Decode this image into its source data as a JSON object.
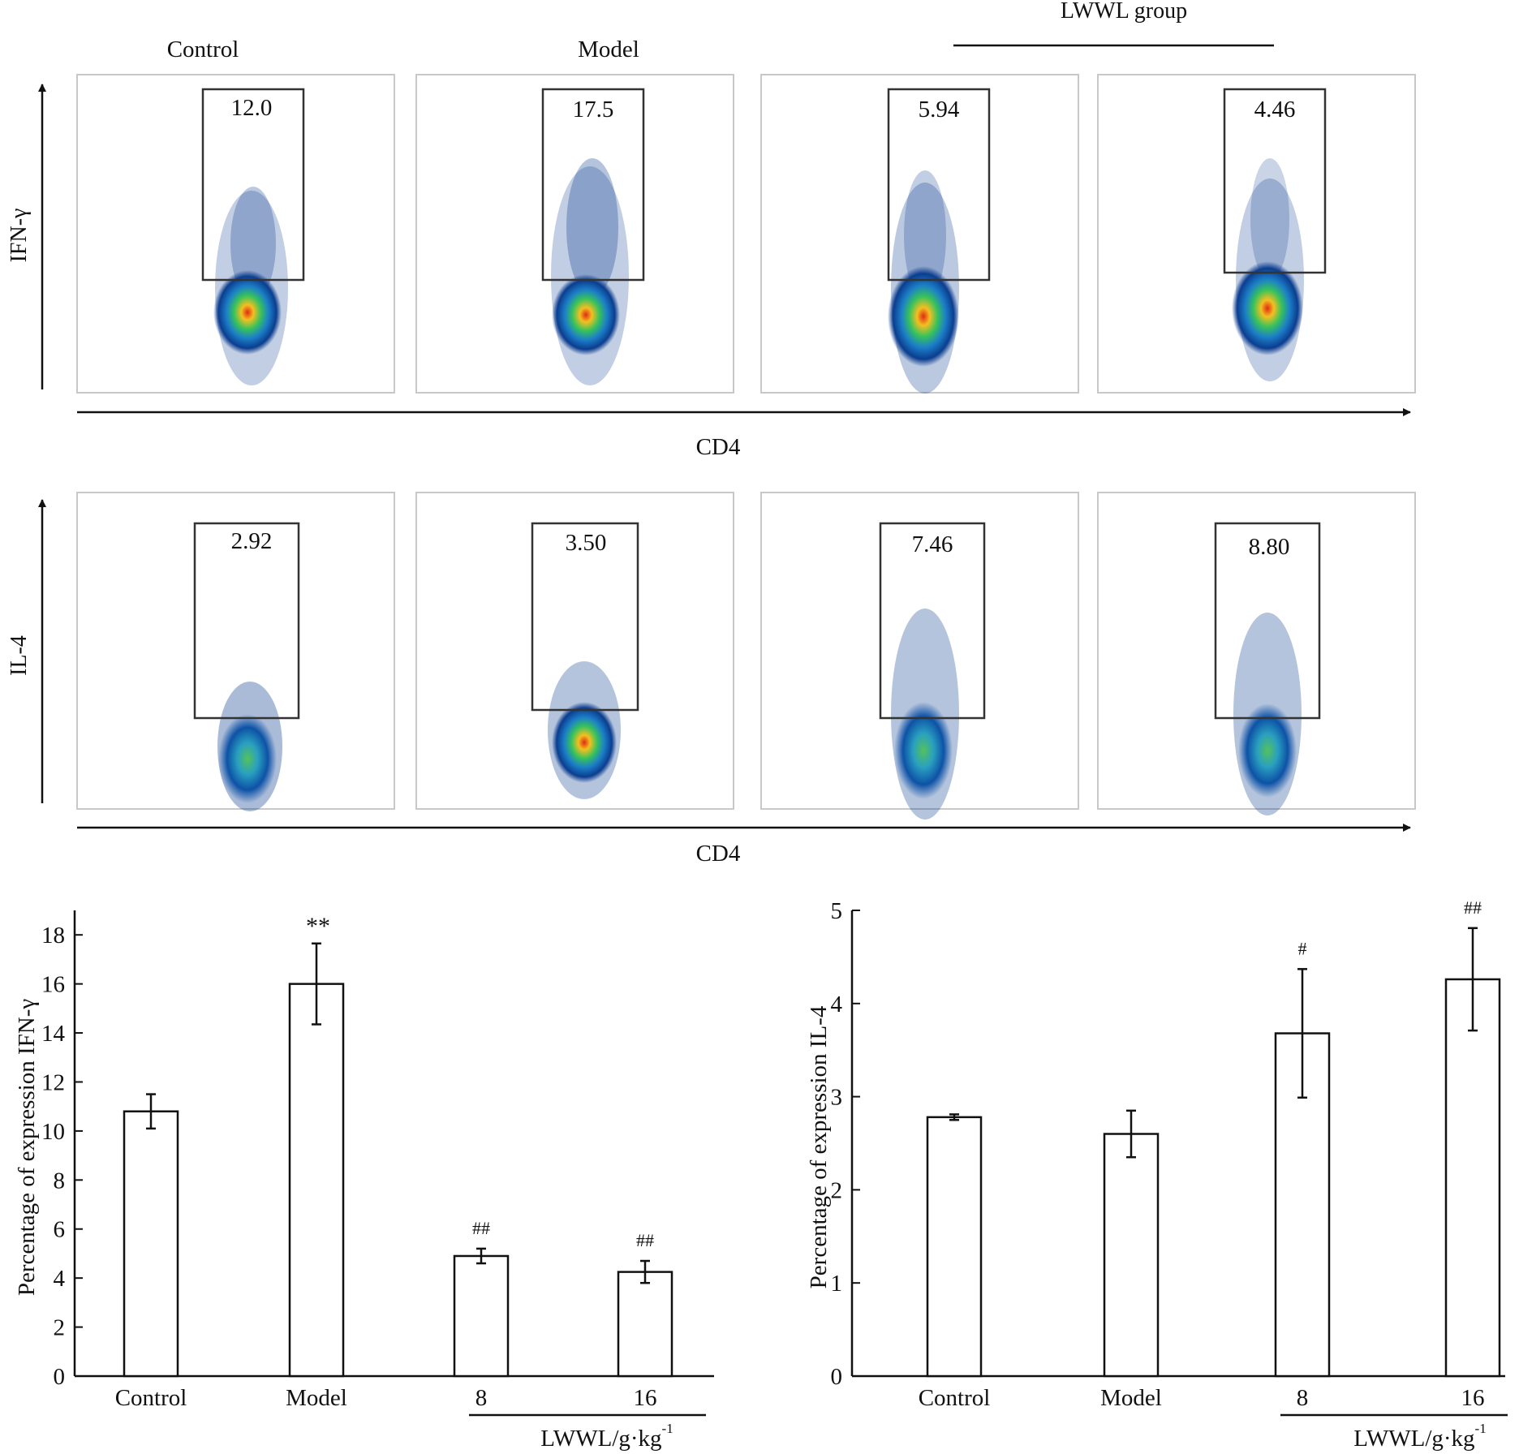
{
  "figure": {
    "group_bracket_label": "LWWL group",
    "flow_columns": [
      "Control",
      "Model",
      "",
      ""
    ],
    "flow_rows": [
      {
        "ylabel": "IFN-γ",
        "xlabel": "CD4",
        "gate_values": [
          "12.0",
          "17.5",
          "5.94",
          "4.46"
        ],
        "gate_top_frac": [
          0.19,
          0.22,
          0.21,
          0.21
        ]
      },
      {
        "ylabel": "IL-4",
        "xlabel": "CD4",
        "gate_values": [
          "2.92",
          "3.50",
          "7.46",
          "8.80"
        ],
        "gate_top_frac": [
          0.32,
          0.28,
          0.38,
          0.4
        ]
      }
    ],
    "colors": {
      "axis": "#111111",
      "panel_border": "#c8c8c8",
      "gate": "#333333",
      "bar_fill": "#ffffff"
    }
  },
  "chart_data": [
    {
      "type": "bar",
      "categories": [
        "Control",
        "Model",
        "8",
        "16"
      ],
      "values": [
        10.8,
        16.0,
        4.9,
        4.25
      ],
      "errors": [
        0.7,
        1.65,
        0.3,
        0.45
      ],
      "annotations": [
        "",
        "**",
        "##",
        "##"
      ],
      "ylabel": "Percentage of expression IFN-γ",
      "xlabel": "LWWL/g·kg",
      "xlabel_sup": "-1",
      "bracket_categories": [
        "8",
        "16"
      ],
      "ylim": [
        0,
        19
      ],
      "yticks": [
        0,
        2,
        4,
        6,
        8,
        10,
        12,
        14,
        16,
        18
      ]
    },
    {
      "type": "bar",
      "categories": [
        "Control",
        "Model",
        "8",
        "16"
      ],
      "values": [
        2.78,
        2.6,
        3.68,
        4.26
      ],
      "errors": [
        0.03,
        0.25,
        0.69,
        0.55
      ],
      "annotations": [
        "",
        "",
        "#",
        "##"
      ],
      "ylabel": "Percentage of expression IL-4",
      "xlabel": "LWWL/g·kg",
      "xlabel_sup": "-1",
      "bracket_categories": [
        "8",
        "16"
      ],
      "ylim": [
        0,
        5
      ],
      "yticks": [
        0,
        1,
        2,
        3,
        4,
        5
      ]
    }
  ]
}
